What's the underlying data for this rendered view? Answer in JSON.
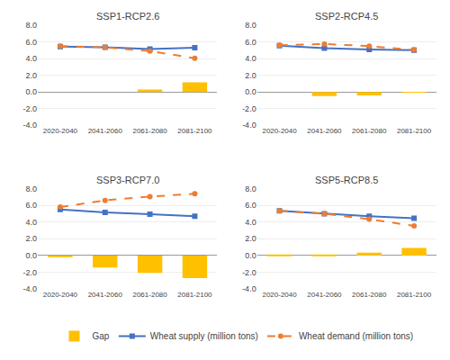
{
  "chart_data": [
    {
      "type": "bar",
      "title": "SSP1-RCP2.6",
      "categories": [
        "2020-2040",
        "2041-2060",
        "2061-2080",
        "2081-2100"
      ],
      "series": [
        {
          "name": "Gap",
          "type": "bar",
          "color": "#FFC000",
          "values": [
            0.0,
            0.0,
            0.3,
            1.15
          ]
        },
        {
          "name": "Wheat supply (million tons)",
          "type": "line",
          "color": "#4472C4",
          "marker": "square",
          "line_style": "solid",
          "values": [
            5.45,
            5.35,
            5.15,
            5.3
          ]
        },
        {
          "name": "Wheat demand (million tons)",
          "type": "line",
          "color": "#ED7D31",
          "marker": "circle",
          "line_style": "dashed",
          "values": [
            5.5,
            5.35,
            4.9,
            4.05
          ]
        }
      ],
      "ylim": [
        -4.0,
        8.0
      ],
      "yticks": [
        {
          "value": -4.0,
          "label": "-4.0"
        },
        {
          "value": -2.0,
          "label": "-2.0"
        },
        {
          "value": 0.0,
          "label": "0.0"
        },
        {
          "value": 2.0,
          "label": "2.0"
        },
        {
          "value": 4.0,
          "label": "4.0"
        },
        {
          "value": 6.0,
          "label": "6.0"
        },
        {
          "value": 8.0,
          "label": "8.0"
        }
      ],
      "grid": true,
      "legend": "bottom"
    },
    {
      "type": "bar",
      "title": "SSP2-RCP4.5",
      "categories": [
        "2020-2040",
        "2041-2060",
        "2061-2080",
        "2081-2100"
      ],
      "series": [
        {
          "name": "Gap",
          "type": "bar",
          "color": "#FFC000",
          "values": [
            0.0,
            -0.5,
            -0.4,
            -0.05
          ]
        },
        {
          "name": "Wheat supply (million tons)",
          "type": "line",
          "color": "#4472C4",
          "marker": "square",
          "line_style": "solid",
          "values": [
            5.55,
            5.25,
            5.1,
            5.0
          ]
        },
        {
          "name": "Wheat demand (million tons)",
          "type": "line",
          "color": "#ED7D31",
          "marker": "circle",
          "line_style": "dashed",
          "values": [
            5.6,
            5.75,
            5.5,
            5.05
          ]
        }
      ],
      "ylim": [
        -4.0,
        8.0
      ],
      "yticks": [
        {
          "value": -4.0,
          "label": "-4.0"
        },
        {
          "value": -2.0,
          "label": "-2.0"
        },
        {
          "value": 0.0,
          "label": "0.0"
        },
        {
          "value": 2.0,
          "label": "2.0"
        },
        {
          "value": 4.0,
          "label": "4.0"
        },
        {
          "value": 6.0,
          "label": "6.0"
        },
        {
          "value": 8.0,
          "label": "8.0"
        }
      ],
      "grid": true,
      "legend": "bottom"
    },
    {
      "type": "bar",
      "title": "SSP3-RCP7.0",
      "categories": [
        "2020-2040",
        "2041-2060",
        "2061-2080",
        "2081-2100"
      ],
      "series": [
        {
          "name": "Gap",
          "type": "bar",
          "color": "#FFC000",
          "values": [
            -0.1,
            -1.45,
            -2.1,
            -2.7
          ]
        },
        {
          "name": "Wheat supply (million tons)",
          "type": "line",
          "color": "#4472C4",
          "marker": "square",
          "line_style": "solid",
          "values": [
            5.5,
            5.15,
            4.95,
            4.7
          ]
        },
        {
          "name": "Wheat demand (million tons)",
          "type": "line",
          "color": "#ED7D31",
          "marker": "circle",
          "line_style": "dashed",
          "values": [
            5.8,
            6.6,
            7.05,
            7.4
          ]
        }
      ],
      "ylim": [
        -4.0,
        8.0
      ],
      "yticks": [
        {
          "value": -4.0,
          "label": "-4.0"
        },
        {
          "value": -2.0,
          "label": "-2.0"
        },
        {
          "value": 0.0,
          "label": "0.0"
        },
        {
          "value": 2.0,
          "label": "2.0"
        },
        {
          "value": 4.0,
          "label": "4.0"
        },
        {
          "value": 6.0,
          "label": "6.0"
        },
        {
          "value": 8.0,
          "label": "8.0"
        }
      ],
      "grid": true,
      "legend": "bottom"
    },
    {
      "type": "bar",
      "title": "SSP5-RCP8.5",
      "categories": [
        "2020-2040",
        "2041-2060",
        "2061-2080",
        "2081-2100"
      ],
      "series": [
        {
          "name": "Gap",
          "type": "bar",
          "color": "#FFC000",
          "values": [
            0.05,
            0.05,
            0.35,
            0.9
          ]
        },
        {
          "name": "Wheat supply (million tons)",
          "type": "line",
          "color": "#4472C4",
          "marker": "square",
          "line_style": "solid",
          "values": [
            5.35,
            5.0,
            4.7,
            4.45
          ]
        },
        {
          "name": "Wheat demand (million tons)",
          "type": "line",
          "color": "#ED7D31",
          "marker": "circle",
          "line_style": "dashed",
          "values": [
            5.35,
            5.0,
            4.35,
            3.55
          ]
        }
      ],
      "ylim": [
        -4.0,
        8.0
      ],
      "yticks": [
        {
          "value": -4.0,
          "label": "-4.0"
        },
        {
          "value": -2.0,
          "label": "-2.0"
        },
        {
          "value": 0.0,
          "label": "0.0"
        },
        {
          "value": 2.0,
          "label": "2.0"
        },
        {
          "value": 4.0,
          "label": "4.0"
        },
        {
          "value": 6.0,
          "label": "6.0"
        },
        {
          "value": 8.0,
          "label": "8.0"
        }
      ],
      "grid": true,
      "legend": "bottom"
    }
  ]
}
